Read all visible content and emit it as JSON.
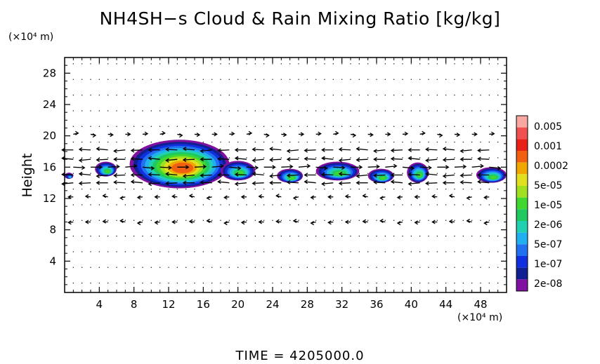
{
  "chart_data": {
    "type": "heatmap",
    "title": "NH4SH−s Cloud & Rain Mixing Ratio [kg/kg]",
    "ylabel": "Height",
    "x_unit": "(×10⁴ m)",
    "y_unit": "(×10⁴ m)",
    "time_label": "TIME  =  4205000.0",
    "xlim": [
      0,
      51
    ],
    "ylim": [
      0,
      30
    ],
    "x_ticks": [
      4,
      8,
      12,
      16,
      20,
      24,
      28,
      32,
      36,
      40,
      44,
      48
    ],
    "y_ticks": [
      4,
      8,
      12,
      16,
      20,
      24,
      28
    ],
    "colorbar": {
      "labels": [
        "0.005",
        "0.001",
        "0.0002",
        "5e-05",
        "1e-05",
        "2e-06",
        "5e-07",
        "1e-07",
        "2e-08"
      ],
      "colors": [
        "#f8a8a0",
        "#f05050",
        "#e82018",
        "#f06010",
        "#f0a800",
        "#e0e020",
        "#a0e020",
        "#40d830",
        "#20c860",
        "#20d0b0",
        "#20b0f0",
        "#2070f0",
        "#1030e0",
        "#102090",
        "#8010a0"
      ]
    },
    "cloud_cells": [
      {
        "x_range": [
          0,
          1
        ],
        "y_range": [
          14.5,
          15.3
        ],
        "peak": "5e-07"
      },
      {
        "x_range": [
          3.5,
          6
        ],
        "y_range": [
          14.8,
          16.7
        ],
        "peak": "1e-05"
      },
      {
        "x_range": [
          7.5,
          19
        ],
        "y_range": [
          13.3,
          19.5
        ],
        "peak": "0.0002"
      },
      {
        "x_range": [
          18,
          22
        ],
        "y_range": [
          14.3,
          16.8
        ],
        "peak": "1e-05"
      },
      {
        "x_range": [
          24.5,
          27.5
        ],
        "y_range": [
          14.0,
          15.8
        ],
        "peak": "1e-05"
      },
      {
        "x_range": [
          29,
          34
        ],
        "y_range": [
          14.3,
          16.7
        ],
        "peak": "1e-05"
      },
      {
        "x_range": [
          35,
          38
        ],
        "y_range": [
          14.0,
          15.8
        ],
        "peak": "1e-05"
      },
      {
        "x_range": [
          39.5,
          42
        ],
        "y_range": [
          14.0,
          16.6
        ],
        "peak": "1e-05"
      },
      {
        "x_range": [
          47.5,
          51
        ],
        "y_range": [
          14.0,
          16.0
        ],
        "peak": "1e-05"
      }
    ]
  }
}
